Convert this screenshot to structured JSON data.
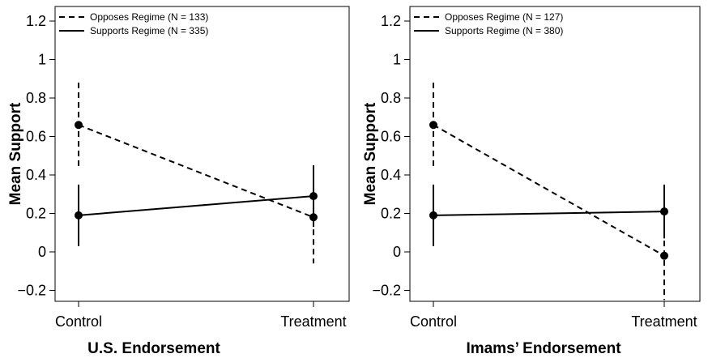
{
  "chart_data": [
    {
      "type": "line",
      "title": "",
      "xlabel": "U.S. Endorsement",
      "ylabel": "Mean Support",
      "categories": [
        "Control",
        "Treatment"
      ],
      "ylim": [
        -0.25,
        1.25
      ],
      "yticks": [
        "−0.2",
        "0",
        "0.2",
        "0.4",
        "0.6",
        "0.8",
        "1",
        "1.2"
      ],
      "legend_position": "top-left",
      "grid": false,
      "series": [
        {
          "name": "Opposes Regime (N = 133)",
          "style": "dashed",
          "values": [
            0.66,
            0.18
          ],
          "ci_low": [
            0.44,
            -0.06
          ],
          "ci_high": [
            0.88,
            0.42
          ]
        },
        {
          "name": "Supports Regime (N = 335)",
          "style": "solid",
          "values": [
            0.19,
            0.29
          ],
          "ci_low": [
            0.03,
            0.13
          ],
          "ci_high": [
            0.35,
            0.45
          ]
        }
      ]
    },
    {
      "type": "line",
      "title": "",
      "xlabel": "Imams’ Endorsement",
      "ylabel": "Mean Support",
      "categories": [
        "Control",
        "Treatment"
      ],
      "ylim": [
        -0.25,
        1.25
      ],
      "yticks": [
        "−0.2",
        "0",
        "0.2",
        "0.4",
        "0.6",
        "0.8",
        "1",
        "1.2"
      ],
      "legend_position": "top-left",
      "grid": false,
      "series": [
        {
          "name": "Opposes Regime (N = 127)",
          "style": "dashed",
          "values": [
            0.66,
            -0.02
          ],
          "ci_low": [
            0.44,
            -0.25
          ],
          "ci_high": [
            0.88,
            0.21
          ]
        },
        {
          "name": "Supports Regime (N = 380)",
          "style": "solid",
          "values": [
            0.19,
            0.21
          ],
          "ci_low": [
            0.03,
            0.07
          ],
          "ci_high": [
            0.35,
            0.35
          ]
        }
      ]
    }
  ]
}
